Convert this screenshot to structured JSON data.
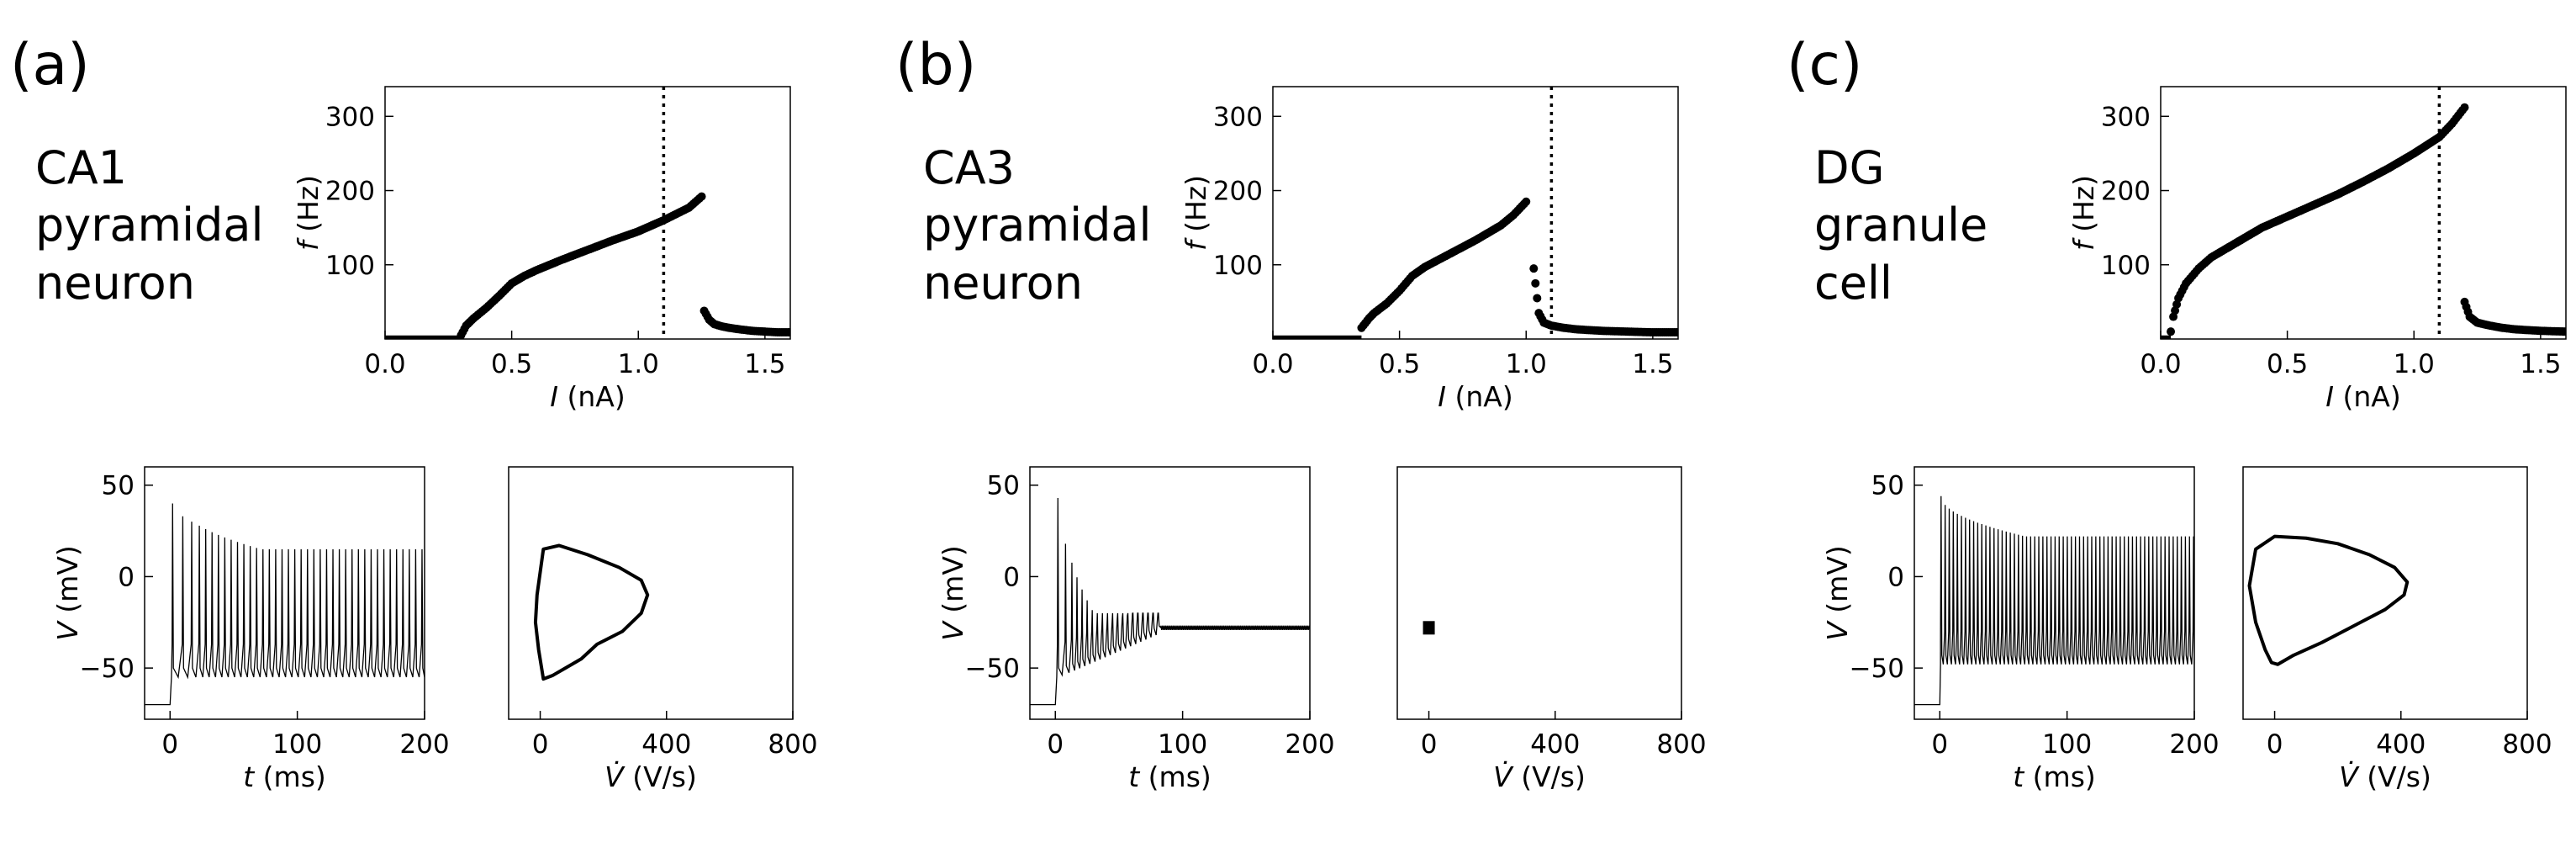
{
  "panels": [
    {
      "label": "(a)",
      "cell_name": [
        "CA1",
        "pyramidal",
        "neuron"
      ]
    },
    {
      "label": "(b)",
      "cell_name": [
        "CA3",
        "pyramidal",
        "neuron"
      ]
    },
    {
      "label": "(c)",
      "cell_name": [
        "DG",
        "granule",
        "cell"
      ]
    }
  ],
  "chart_data": [
    {
      "panel": "(a)",
      "kind": "fI",
      "type": "scatter",
      "xlabel_symbol": "I",
      "xlabel_unit": "(nA)",
      "ylabel_symbol": "f",
      "ylabel_unit": "(Hz)",
      "xlim": [
        0,
        1.6
      ],
      "ylim": [
        0,
        340
      ],
      "xticks": [
        "0.0",
        "0.5",
        "1.0",
        "1.5"
      ],
      "yticks": [
        "100",
        "200",
        "300"
      ],
      "vline_x": 1.1,
      "branch1": {
        "x": [
          0.3,
          0.32,
          0.35,
          0.4,
          0.45,
          0.5,
          0.55,
          0.6,
          0.7,
          0.8,
          0.9,
          1.0,
          1.1,
          1.2,
          1.25
        ],
        "y": [
          5,
          18,
          28,
          42,
          58,
          75,
          85,
          93,
          107,
          120,
          133,
          145,
          160,
          177,
          192
        ]
      },
      "branch2": {
        "x": [
          1.26,
          1.28,
          1.3,
          1.33,
          1.36,
          1.4,
          1.45,
          1.5,
          1.55,
          1.6
        ],
        "y": [
          38,
          26,
          20,
          17,
          15,
          13,
          11,
          10,
          9,
          9
        ]
      }
    },
    {
      "panel": "(b)",
      "kind": "fI",
      "type": "scatter",
      "xlabel_symbol": "I",
      "xlabel_unit": "(nA)",
      "ylabel_symbol": "f",
      "ylabel_unit": "(Hz)",
      "xlim": [
        0,
        1.6
      ],
      "ylim": [
        0,
        340
      ],
      "xticks": [
        "0.0",
        "0.5",
        "1.0",
        "1.5"
      ],
      "yticks": [
        "100",
        "200",
        "300"
      ],
      "vline_x": 1.1,
      "branch1": {
        "x": [
          0.35,
          0.38,
          0.4,
          0.45,
          0.5,
          0.55,
          0.6,
          0.7,
          0.8,
          0.9,
          0.95,
          1.0
        ],
        "y": [
          15,
          28,
          35,
          48,
          65,
          85,
          97,
          115,
          133,
          153,
          167,
          185
        ]
      },
      "branch2": {
        "x": [
          1.03,
          1.05,
          1.07,
          1.1,
          1.15,
          1.2,
          1.3,
          1.4,
          1.5,
          1.6
        ],
        "y": [
          95,
          35,
          22,
          18,
          15,
          13,
          11,
          10,
          9,
          9
        ]
      }
    },
    {
      "panel": "(c)",
      "kind": "fI",
      "type": "scatter",
      "xlabel_symbol": "I",
      "xlabel_unit": "(nA)",
      "ylabel_symbol": "f",
      "ylabel_unit": "(Hz)",
      "xlim": [
        0,
        1.6
      ],
      "ylim": [
        0,
        340
      ],
      "xticks": [
        "0.0",
        "0.5",
        "1.0",
        "1.5"
      ],
      "yticks": [
        "100",
        "200",
        "300"
      ],
      "vline_x": 1.1,
      "branch1": {
        "x": [
          0.04,
          0.05,
          0.07,
          0.1,
          0.15,
          0.2,
          0.3,
          0.4,
          0.5,
          0.6,
          0.7,
          0.8,
          0.9,
          1.0,
          1.1,
          1.15,
          1.2
        ],
        "y": [
          10,
          30,
          55,
          75,
          95,
          110,
          130,
          150,
          165,
          180,
          195,
          212,
          230,
          250,
          272,
          290,
          312
        ]
      },
      "branch2": {
        "x": [
          1.2,
          1.22,
          1.25,
          1.3,
          1.35,
          1.4,
          1.5,
          1.6
        ],
        "y": [
          50,
          30,
          22,
          18,
          15,
          13,
          11,
          10
        ]
      }
    },
    {
      "panel": "(a)",
      "kind": "trace",
      "type": "line",
      "xlabel_symbol": "t",
      "xlabel_unit": "(ms)",
      "ylabel_symbol": "V",
      "ylabel_unit": "(mV)",
      "xlim": [
        -20,
        200
      ],
      "ylim": [
        -78,
        60
      ],
      "xticks": [
        "0",
        "100",
        "200"
      ],
      "yticks": [
        "50",
        "0",
        "−50"
      ],
      "rest": -70,
      "onset": 0,
      "peak_first": 40,
      "peak_ss": 15,
      "trough": -55,
      "spike_times_ms": [
        2,
        10,
        17,
        23,
        28,
        33,
        38,
        43,
        48,
        53,
        58,
        63,
        68,
        73,
        78,
        83,
        88,
        93,
        98,
        103,
        108,
        113,
        118,
        123,
        128,
        133,
        138,
        143,
        148,
        153,
        158,
        163,
        168,
        173,
        178,
        183,
        188,
        193,
        198
      ],
      "plateau": null
    },
    {
      "panel": "(b)",
      "kind": "trace",
      "type": "line",
      "xlabel_symbol": "t",
      "xlabel_unit": "(ms)",
      "ylabel_symbol": "V",
      "ylabel_unit": "(mV)",
      "xlim": [
        -20,
        200
      ],
      "ylim": [
        -78,
        60
      ],
      "xticks": [
        "0",
        "100",
        "200"
      ],
      "yticks": [
        "50",
        "0",
        "−50"
      ],
      "rest": -70,
      "onset": 0,
      "peak_first": 43,
      "peak_ss": -20,
      "trough": -55,
      "spike_times_ms": [
        2,
        8,
        13,
        17,
        21,
        25,
        29,
        33,
        37,
        41,
        45,
        49,
        53,
        57,
        61,
        65,
        69,
        73,
        77,
        81
      ],
      "plateau": -28
    },
    {
      "panel": "(c)",
      "kind": "trace",
      "type": "line",
      "xlabel_symbol": "t",
      "xlabel_unit": "(ms)",
      "ylabel_symbol": "V",
      "ylabel_unit": "(mV)",
      "xlim": [
        -20,
        200
      ],
      "ylim": [
        -78,
        60
      ],
      "xticks": [
        "0",
        "100",
        "200"
      ],
      "yticks": [
        "50",
        "0",
        "−50"
      ],
      "rest": -70,
      "onset": 0,
      "peak_first": 44,
      "peak_ss": 22,
      "trough": -48,
      "spike_period_ms": 3.2,
      "plateau": null
    },
    {
      "panel": "(a)",
      "kind": "phase",
      "type": "line",
      "xlabel_symbol": "V̇",
      "xlabel_unit": "(V/s)",
      "xlim": [
        -100,
        800
      ],
      "ylim": [
        -78,
        60
      ],
      "xticks": [
        "0",
        "400",
        "800"
      ],
      "loop": {
        "x": [
          -10,
          10,
          60,
          150,
          250,
          320,
          340,
          320,
          260,
          180,
          130,
          80,
          40,
          10,
          -5,
          -15,
          -10
        ],
        "y": [
          -10,
          15,
          17,
          12,
          5,
          -2,
          -10,
          -20,
          -30,
          -37,
          -45,
          -50,
          -54,
          -56,
          -40,
          -25,
          -10
        ]
      }
    },
    {
      "panel": "(b)",
      "kind": "phase",
      "type": "line",
      "xlabel_symbol": "V̇",
      "xlabel_unit": "(V/s)",
      "xlim": [
        -100,
        800
      ],
      "ylim": [
        -78,
        60
      ],
      "xticks": [
        "0",
        "400",
        "800"
      ],
      "point": {
        "x": 0,
        "y": -28
      }
    },
    {
      "panel": "(c)",
      "kind": "phase",
      "type": "line",
      "xlabel_symbol": "V̇",
      "xlabel_unit": "(V/s)",
      "xlim": [
        -100,
        800
      ],
      "ylim": [
        -78,
        60
      ],
      "xticks": [
        "0",
        "400",
        "800"
      ],
      "loop": {
        "x": [
          -80,
          -60,
          0,
          100,
          200,
          300,
          380,
          420,
          410,
          350,
          250,
          150,
          60,
          10,
          -10,
          -30,
          -60,
          -80
        ],
        "y": [
          -5,
          15,
          22,
          21,
          18,
          12,
          5,
          -3,
          -10,
          -18,
          -27,
          -36,
          -43,
          -48,
          -47,
          -40,
          -25,
          -5
        ]
      }
    }
  ]
}
